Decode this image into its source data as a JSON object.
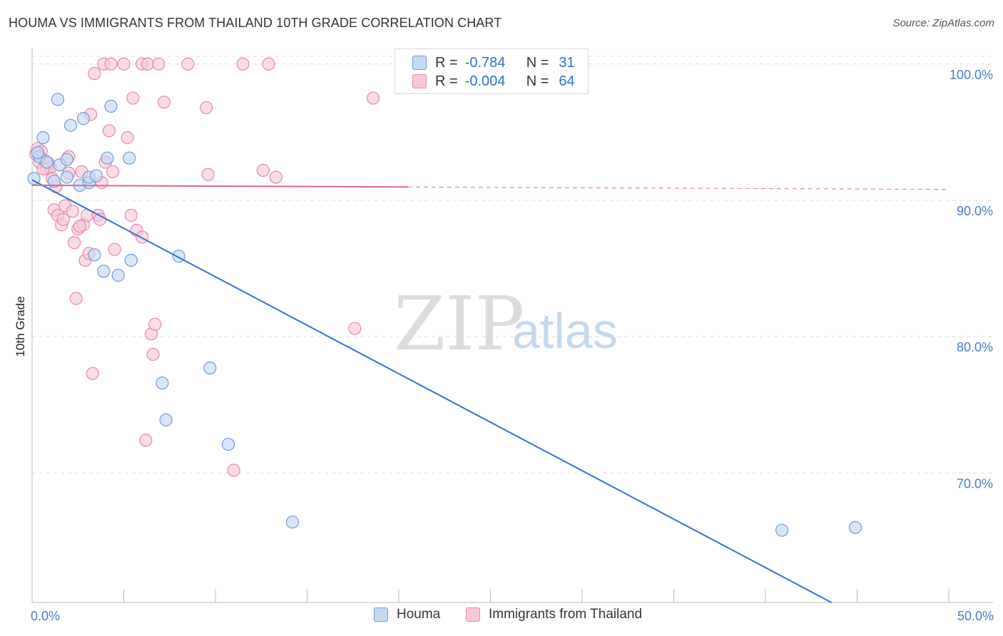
{
  "header": {
    "title": "HOUMA VS IMMIGRANTS FROM THAILAND 10TH GRADE CORRELATION CHART",
    "source": "Source: ZipAtlas.com"
  },
  "watermark": {
    "zip": "ZIP",
    "atlas": "atlas"
  },
  "legend": {
    "houma": {
      "r_label": "R =",
      "r_value": "-0.784",
      "n_label": "N =",
      "n_value": "31"
    },
    "thailand": {
      "r_label": "R =",
      "r_value": "-0.004",
      "n_label": "N =",
      "n_value": "64"
    }
  },
  "bottom_legend": {
    "houma": "Houma",
    "thailand": "Immigrants from Thailand"
  },
  "colors": {
    "houma_fill": "#c5d9f3",
    "houma_stroke": "#6f9bd8",
    "houma_line": "#2f73d6",
    "thailand_fill": "#f7c9d8",
    "thailand_stroke": "#e38aa8",
    "thailand_line": "#e0678e",
    "axis_label": "#4a7cc9",
    "grid": "#dddddd"
  },
  "chart_data": {
    "type": "scatter",
    "title": "HOUMA VS IMMIGRANTS FROM THAILAND 10TH GRADE CORRELATION CHART",
    "xlabel": "",
    "ylabel": "10th Grade",
    "xlim": [
      0,
      50
    ],
    "ylim": [
      60.5,
      101.7
    ],
    "x_tick_labels": [
      "0.0%",
      "50.0%"
    ],
    "y_ticks": [
      70,
      80,
      90,
      100
    ],
    "y_tick_labels": [
      "70.0%",
      "80.0%",
      "90.0%",
      "100.0%"
    ],
    "grid": "horizontal dashed",
    "legend_position": "top-center",
    "series": [
      {
        "name": "Houma",
        "points": [
          [
            0.1,
            91.6
          ],
          [
            0.6,
            94.6
          ],
          [
            0.4,
            93.2
          ],
          [
            0.8,
            92.8
          ],
          [
            1.2,
            91.4
          ],
          [
            1.4,
            97.4
          ],
          [
            1.5,
            92.6
          ],
          [
            1.9,
            93.0
          ],
          [
            1.9,
            91.7
          ],
          [
            2.1,
            95.5
          ],
          [
            2.6,
            91.1
          ],
          [
            2.8,
            96.0
          ],
          [
            3.1,
            91.3
          ],
          [
            3.1,
            91.7
          ],
          [
            3.4,
            86.0
          ],
          [
            3.5,
            91.8
          ],
          [
            3.9,
            84.8
          ],
          [
            4.1,
            93.1
          ],
          [
            4.3,
            96.9
          ],
          [
            4.7,
            84.5
          ],
          [
            5.3,
            93.1
          ],
          [
            5.4,
            85.6
          ],
          [
            7.1,
            76.6
          ],
          [
            7.3,
            73.9
          ],
          [
            8.0,
            85.9
          ],
          [
            9.7,
            77.7
          ],
          [
            10.7,
            72.1
          ],
          [
            14.2,
            66.4
          ],
          [
            40.9,
            65.8
          ],
          [
            44.9,
            66.0
          ],
          [
            0.3,
            93.5
          ]
        ],
        "trend": {
          "x": [
            0,
            43.6
          ],
          "y": [
            91.5,
            60.5
          ],
          "style": "solid"
        }
      },
      {
        "name": "Immigrants from Thailand",
        "points": [
          [
            0.2,
            93.4
          ],
          [
            0.3,
            93.8
          ],
          [
            0.4,
            92.8
          ],
          [
            0.5,
            93.6
          ],
          [
            0.7,
            92.9
          ],
          [
            0.8,
            92.3
          ],
          [
            0.9,
            92.7
          ],
          [
            1.0,
            92.4
          ],
          [
            1.1,
            91.6
          ],
          [
            1.2,
            89.3
          ],
          [
            1.3,
            91.0
          ],
          [
            1.4,
            88.9
          ],
          [
            1.6,
            88.2
          ],
          [
            1.8,
            89.6
          ],
          [
            2.0,
            92.0
          ],
          [
            2.0,
            93.2
          ],
          [
            2.2,
            89.2
          ],
          [
            2.3,
            86.9
          ],
          [
            2.4,
            82.8
          ],
          [
            2.5,
            87.9
          ],
          [
            2.7,
            92.1
          ],
          [
            2.8,
            88.2
          ],
          [
            2.9,
            85.6
          ],
          [
            3.0,
            88.9
          ],
          [
            3.1,
            86.1
          ],
          [
            3.2,
            96.3
          ],
          [
            3.3,
            77.3
          ],
          [
            3.4,
            99.3
          ],
          [
            3.6,
            88.9
          ],
          [
            3.7,
            88.6
          ],
          [
            3.8,
            91.3
          ],
          [
            3.9,
            100.0
          ],
          [
            4.0,
            92.8
          ],
          [
            4.2,
            95.1
          ],
          [
            4.3,
            100.0
          ],
          [
            4.4,
            92.1
          ],
          [
            4.5,
            86.4
          ],
          [
            5.0,
            100.0
          ],
          [
            5.2,
            94.6
          ],
          [
            5.4,
            88.9
          ],
          [
            5.5,
            97.5
          ],
          [
            5.7,
            87.8
          ],
          [
            6.0,
            87.3
          ],
          [
            6.0,
            100.0
          ],
          [
            6.2,
            72.4
          ],
          [
            6.3,
            100.0
          ],
          [
            6.5,
            80.2
          ],
          [
            6.6,
            78.7
          ],
          [
            6.7,
            80.9
          ],
          [
            6.9,
            100.0
          ],
          [
            7.2,
            97.2
          ],
          [
            8.5,
            100.0
          ],
          [
            9.5,
            96.8
          ],
          [
            9.6,
            91.9
          ],
          [
            11.0,
            70.2
          ],
          [
            11.5,
            100.0
          ],
          [
            12.6,
            92.2
          ],
          [
            12.9,
            100.0
          ],
          [
            13.3,
            91.7
          ],
          [
            17.6,
            80.6
          ],
          [
            18.6,
            97.5
          ],
          [
            1.7,
            88.6
          ],
          [
            2.6,
            88.1
          ],
          [
            0.6,
            92.3
          ]
        ],
        "trend": {
          "x": [
            0,
            50
          ],
          "y": [
            91.1,
            90.8
          ],
          "style": "solid to 20.5 then dashed"
        }
      }
    ]
  }
}
